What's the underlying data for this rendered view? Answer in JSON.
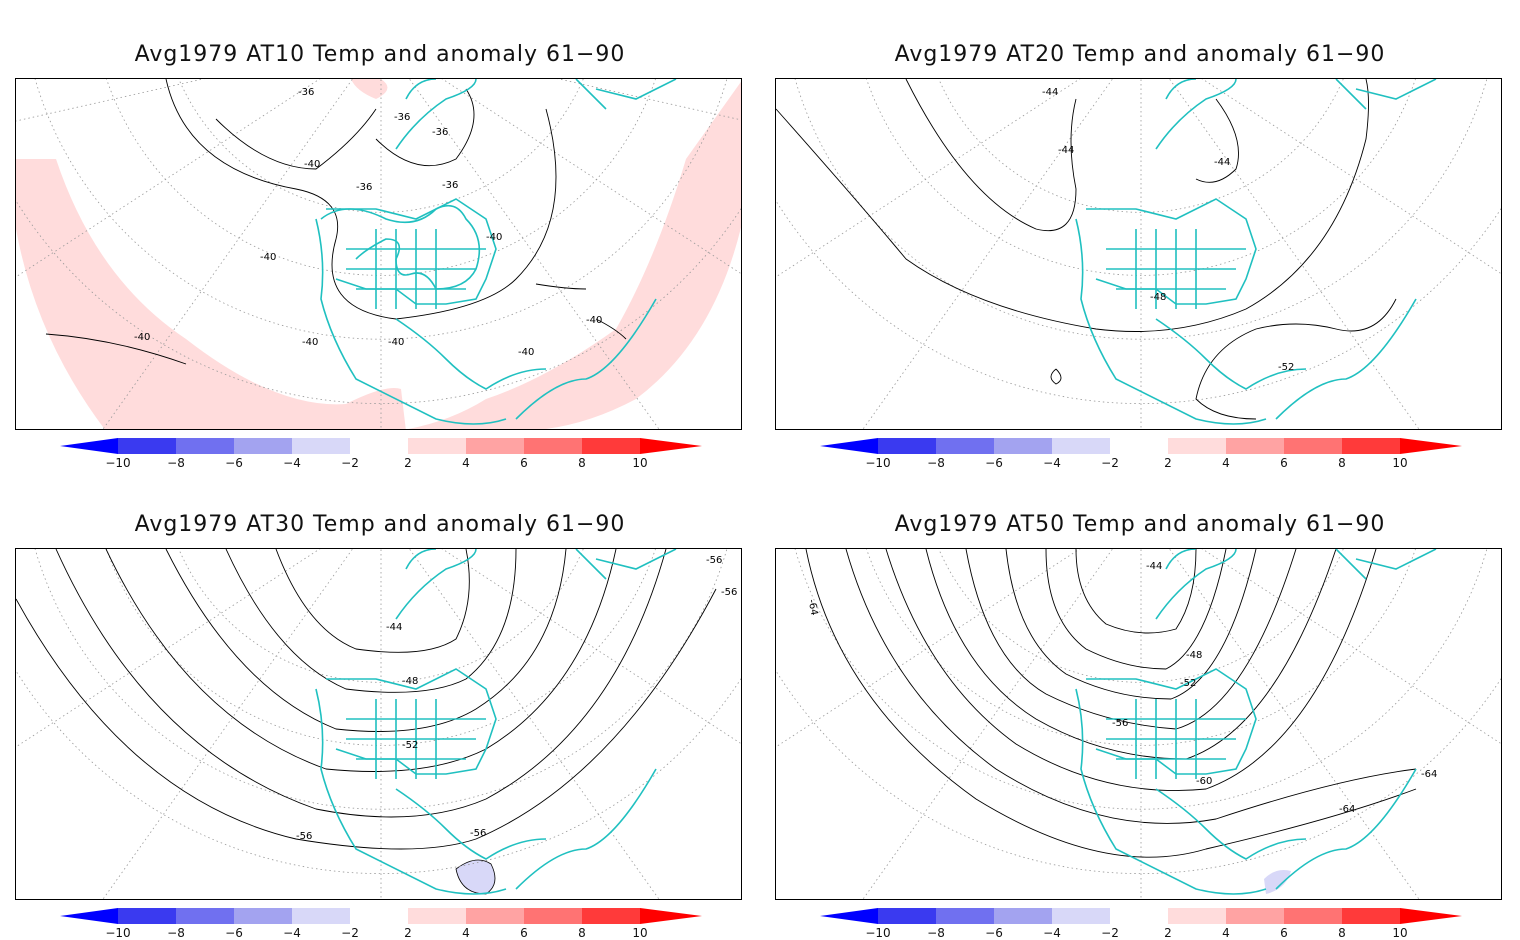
{
  "panels": [
    {
      "id": "at10",
      "title": "Avg1979 AT10 Temp and anomaly 61−90",
      "contour_labels": [
        "-36",
        "-36",
        "-36",
        "-40",
        "-36",
        "-36",
        "-40",
        "-40",
        "-40",
        "-40",
        "-40",
        "-40",
        "-40"
      ],
      "anomaly_regions": [
        "positive"
      ]
    },
    {
      "id": "at20",
      "title": "Avg1979 AT20 Temp and anomaly 61−90",
      "contour_labels": [
        "-44",
        "-44",
        "-44",
        "-48",
        "-52"
      ],
      "anomaly_regions": []
    },
    {
      "id": "at30",
      "title": "Avg1979 AT30 Temp and anomaly 61−90",
      "contour_labels": [
        "-44",
        "-48",
        "-52",
        "-56",
        "-56",
        "-56",
        "-56"
      ],
      "anomaly_regions": [
        "negative"
      ]
    },
    {
      "id": "at50",
      "title": "Avg1979 AT50 Temp and anomaly 61−90",
      "contour_labels": [
        "-44",
        "-48",
        "-52",
        "-56",
        "-60",
        "-64",
        "-64",
        "-64"
      ],
      "anomaly_regions": [
        "negative"
      ]
    }
  ],
  "colorbar": {
    "ticks": [
      "−10",
      "−8",
      "−6",
      "−4",
      "−2",
      "2",
      "4",
      "6",
      "8",
      "10"
    ],
    "colors": {
      "neg10": "#0000ff",
      "neg8": "#3a3af0",
      "neg6": "#7070f0",
      "neg4": "#a3a3f0",
      "neg2": "#d8d8f8",
      "zero": "#ffffff",
      "pos2": "#ffdcdc",
      "pos4": "#ffa3a3",
      "pos6": "#ff7373",
      "pos8": "#ff3a3a",
      "pos10": "#ff0000"
    }
  },
  "colors": {
    "coastline": "#20c0c0",
    "contour": "#000000",
    "graticule": "#888888",
    "anomaly_positive": "#ffdcdc",
    "anomaly_negative": "#d8d8f8"
  }
}
